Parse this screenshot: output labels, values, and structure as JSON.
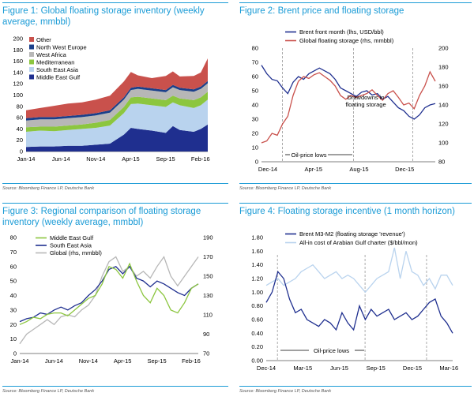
{
  "charts": [
    {
      "title": "Figure 1: Global floating storage inventory (weekly average, mmbbl)",
      "source": "Source: Bloomberg Finance LP, Deutsche Bank"
    },
    {
      "title": "Figure 2: Brent price and floating storage",
      "source": "Source: Bloomberg Finance LP, Deutsche Bank"
    },
    {
      "title": "Figure 3: Regional comparison of floating storage inventory (weekly average, mmbbl)",
      "source": "Source: Bloomberg Finance LP, Deutsche Bank"
    },
    {
      "title": "Figure 4: Floating storage incentive (1 month horizon)",
      "source": "Source: Bloomberg Finance LP, Deutsche Bank"
    }
  ],
  "chart_data": [
    {
      "type": "area",
      "title": "Figure 1: Global floating storage inventory (weekly average, mmbbl)",
      "xlabel": "",
      "ylabel": "",
      "x_ticks": [
        "Jan-14",
        "Jun-14",
        "Nov-14",
        "Apr-15",
        "Sep-15",
        "Feb-16"
      ],
      "y_ticks": [
        0,
        20,
        40,
        60,
        80,
        100,
        120,
        140,
        160,
        180,
        200
      ],
      "ylim": [
        0,
        200
      ],
      "legend": "top-left",
      "x": [
        0,
        2,
        4,
        6,
        8,
        10,
        12,
        14,
        15,
        16,
        18,
        20,
        21,
        22,
        24,
        25,
        26
      ],
      "series": [
        {
          "name": "Middle East Gulf",
          "color": "#1f2f8f",
          "values": [
            8,
            9,
            9,
            10,
            10,
            12,
            14,
            30,
            42,
            40,
            37,
            33,
            45,
            38,
            35,
            40,
            48
          ]
        },
        {
          "name": "South East Asia",
          "color": "#b9d3ee",
          "values": [
            27,
            28,
            27,
            28,
            30,
            30,
            32,
            38,
            42,
            45,
            45,
            46,
            42,
            44,
            42,
            42,
            44
          ]
        },
        {
          "name": "Mediterranean",
          "color": "#8cc63f",
          "values": [
            8,
            7,
            8,
            8,
            8,
            9,
            10,
            11,
            12,
            12,
            12,
            12,
            12,
            12,
            14,
            14,
            14
          ]
        },
        {
          "name": "West Africa",
          "color": "#b7b7b7",
          "values": [
            12,
            13,
            13,
            13,
            13,
            13,
            13,
            13,
            13,
            14,
            14,
            14,
            15,
            15,
            15,
            15,
            15
          ]
        },
        {
          "name": "North West Europe",
          "color": "#1a3f8a",
          "values": [
            4,
            4,
            4,
            4,
            4,
            4,
            4,
            4,
            4,
            4,
            4,
            4,
            4,
            4,
            4,
            4,
            4
          ]
        },
        {
          "name": "Other",
          "color": "#c9514c",
          "values": [
            14,
            16,
            20,
            22,
            22,
            24,
            26,
            28,
            28,
            20,
            18,
            25,
            24,
            20,
            24,
            25,
            40
          ]
        }
      ]
    },
    {
      "type": "line",
      "title": "Figure 2: Brent price and floating storage",
      "x_ticks": [
        "Dec-14",
        "Apr-15",
        "Aug-15",
        "Dec-15"
      ],
      "y_left_ticks": [
        0,
        10,
        20,
        30,
        40,
        50,
        60,
        70,
        80
      ],
      "y_right_ticks": [
        80,
        100,
        120,
        140,
        160,
        180,
        200
      ],
      "ylim_left": [
        0,
        80
      ],
      "ylim_right": [
        80,
        200
      ],
      "legend": "top",
      "annotations": [
        "Drawdowns in floating storage",
        "Oil-price lows"
      ],
      "x": [
        0,
        2,
        4,
        6,
        8,
        10,
        12,
        14,
        16,
        18,
        20,
        22,
        24,
        26,
        28,
        30,
        32,
        34,
        36,
        38,
        40,
        42,
        44,
        46,
        48,
        50,
        52,
        54,
        56,
        58,
        60,
        62,
        64,
        66
      ],
      "series": [
        {
          "name": "Brent front month (lhs, USD/bbl)",
          "color": "#1f2f8f",
          "axis": "left",
          "values": [
            68,
            62,
            58,
            57,
            52,
            48,
            56,
            60,
            58,
            62,
            64,
            66,
            64,
            62,
            58,
            52,
            50,
            48,
            46,
            49,
            50,
            47,
            48,
            44,
            46,
            42,
            38,
            36,
            32,
            30,
            33,
            38,
            40,
            41
          ]
        },
        {
          "name": "Global floating storage (rhs, mmbbl)",
          "color": "#c9514c",
          "axis": "right",
          "values": [
            100,
            102,
            110,
            108,
            120,
            128,
            150,
            165,
            170,
            168,
            172,
            174,
            170,
            166,
            160,
            150,
            146,
            150,
            148,
            150,
            152,
            156,
            150,
            145,
            152,
            155,
            148,
            140,
            142,
            136,
            150,
            160,
            175,
            165
          ]
        }
      ]
    },
    {
      "type": "line",
      "title": "Figure 3: Regional comparison of floating storage inventory (weekly average, mmbbl)",
      "x_ticks": [
        "Jan-14",
        "Jun-14",
        "Nov-14",
        "Apr-15",
        "Sep-15",
        "Feb-16"
      ],
      "y_left_ticks": [
        0,
        10,
        20,
        30,
        40,
        50,
        60,
        70,
        80
      ],
      "y_right_ticks": [
        70,
        90,
        110,
        130,
        150,
        170,
        190
      ],
      "ylim_left": [
        0,
        80
      ],
      "ylim_right": [
        70,
        190
      ],
      "legend": "top-left",
      "x": [
        0,
        2,
        4,
        6,
        8,
        10,
        12,
        14,
        16,
        18,
        20,
        22,
        24,
        26,
        28,
        30,
        32,
        34,
        36,
        38,
        40,
        42,
        44,
        46,
        48,
        50,
        52
      ],
      "series": [
        {
          "name": "Middle East Gulf",
          "color": "#8cc63f",
          "axis": "left",
          "values": [
            20,
            22,
            25,
            24,
            27,
            28,
            28,
            26,
            30,
            34,
            38,
            40,
            48,
            60,
            58,
            52,
            62,
            50,
            40,
            35,
            45,
            40,
            30,
            28,
            35,
            45,
            48
          ]
        },
        {
          "name": "South East Asia",
          "color": "#1f2f8f",
          "axis": "left",
          "values": [
            22,
            24,
            25,
            28,
            27,
            30,
            32,
            30,
            33,
            35,
            40,
            44,
            50,
            58,
            60,
            55,
            60,
            52,
            50,
            46,
            50,
            48,
            45,
            42,
            40,
            45,
            48
          ]
        },
        {
          "name": "Global (rhs, mmbbl)",
          "color": "#b7b7b7",
          "axis": "right",
          "values": [
            80,
            90,
            95,
            100,
            105,
            100,
            108,
            110,
            108,
            115,
            120,
            130,
            150,
            165,
            170,
            155,
            160,
            150,
            155,
            148,
            160,
            170,
            150,
            140,
            150,
            160,
            170
          ]
        }
      ]
    },
    {
      "type": "line",
      "title": "Figure 4: Floating storage incentive (1 month horizon)",
      "x_ticks": [
        "Dec-14",
        "Mar-15",
        "Jun-15",
        "Sep-15",
        "Dec-15",
        "Mar-16"
      ],
      "y_ticks": [
        "0.00",
        "0.20",
        "0.40",
        "0.60",
        "0.80",
        "1.00",
        "1.20",
        "1.40",
        "1.60",
        "1.80"
      ],
      "ylim": [
        0,
        1.8
      ],
      "legend": "top",
      "annotations": [
        "Oil-price lows"
      ],
      "x": [
        0,
        2,
        4,
        6,
        8,
        10,
        12,
        14,
        16,
        18,
        20,
        22,
        24,
        26,
        28,
        30,
        32,
        34,
        36,
        38,
        40,
        42,
        44,
        46,
        48,
        50,
        52,
        54,
        56,
        58,
        60,
        62,
        64
      ],
      "series": [
        {
          "name": "Brent M3-M2 (floating storage 'revenue')",
          "color": "#1f2f8f",
          "values": [
            0.85,
            1.0,
            1.3,
            1.2,
            0.9,
            0.7,
            0.75,
            0.6,
            0.55,
            0.5,
            0.6,
            0.55,
            0.45,
            0.7,
            0.55,
            0.45,
            0.8,
            0.6,
            0.75,
            0.65,
            0.7,
            0.75,
            0.6,
            0.65,
            0.7,
            0.6,
            0.65,
            0.75,
            0.85,
            0.9,
            0.65,
            0.55,
            0.4
          ]
        },
        {
          "name": "All-in cost of Arabian Gulf charter ($/bbl/mon)",
          "color": "#b9d3ee",
          "values": [
            1.1,
            1.15,
            1.2,
            1.1,
            1.15,
            1.2,
            1.3,
            1.35,
            1.4,
            1.3,
            1.2,
            1.25,
            1.3,
            1.2,
            1.25,
            1.2,
            1.1,
            1.0,
            1.1,
            1.2,
            1.25,
            1.3,
            1.65,
            1.2,
            1.6,
            1.3,
            1.25,
            1.1,
            1.2,
            1.05,
            1.25,
            1.25,
            1.1
          ]
        }
      ]
    }
  ]
}
